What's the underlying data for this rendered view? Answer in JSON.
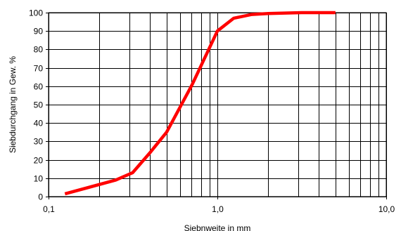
{
  "chart_data": {
    "type": "line",
    "title": "",
    "xlabel": "Siebnweite in mm",
    "ylabel": "Siebdurchgang in Gew. %",
    "x_scale": "log",
    "xlim": [
      0.1,
      10.0
    ],
    "ylim": [
      0,
      100
    ],
    "x_ticks": [
      {
        "value": 0.1,
        "label": "0,1"
      },
      {
        "value": 1.0,
        "label": "1,0"
      },
      {
        "value": 10.0,
        "label": "10,0"
      }
    ],
    "y_ticks": [
      0,
      10,
      20,
      30,
      40,
      50,
      60,
      70,
      80,
      90,
      100
    ],
    "x_minor_grid": [
      0.2,
      0.3,
      0.4,
      0.5,
      0.6,
      0.7,
      0.8,
      0.9,
      2,
      3,
      4,
      5,
      6,
      7,
      8,
      9
    ],
    "grid": true,
    "legend": "none",
    "series": [
      {
        "color": "#ff0000",
        "x": [
          0.125,
          0.25,
          0.315,
          0.4,
          0.5,
          0.71,
          1.0,
          1.25,
          1.6,
          2.0,
          3.15,
          5.0
        ],
        "y": [
          1.5,
          9,
          13,
          24,
          35,
          61,
          90,
          97,
          99,
          99.5,
          100,
          100
        ]
      }
    ]
  }
}
